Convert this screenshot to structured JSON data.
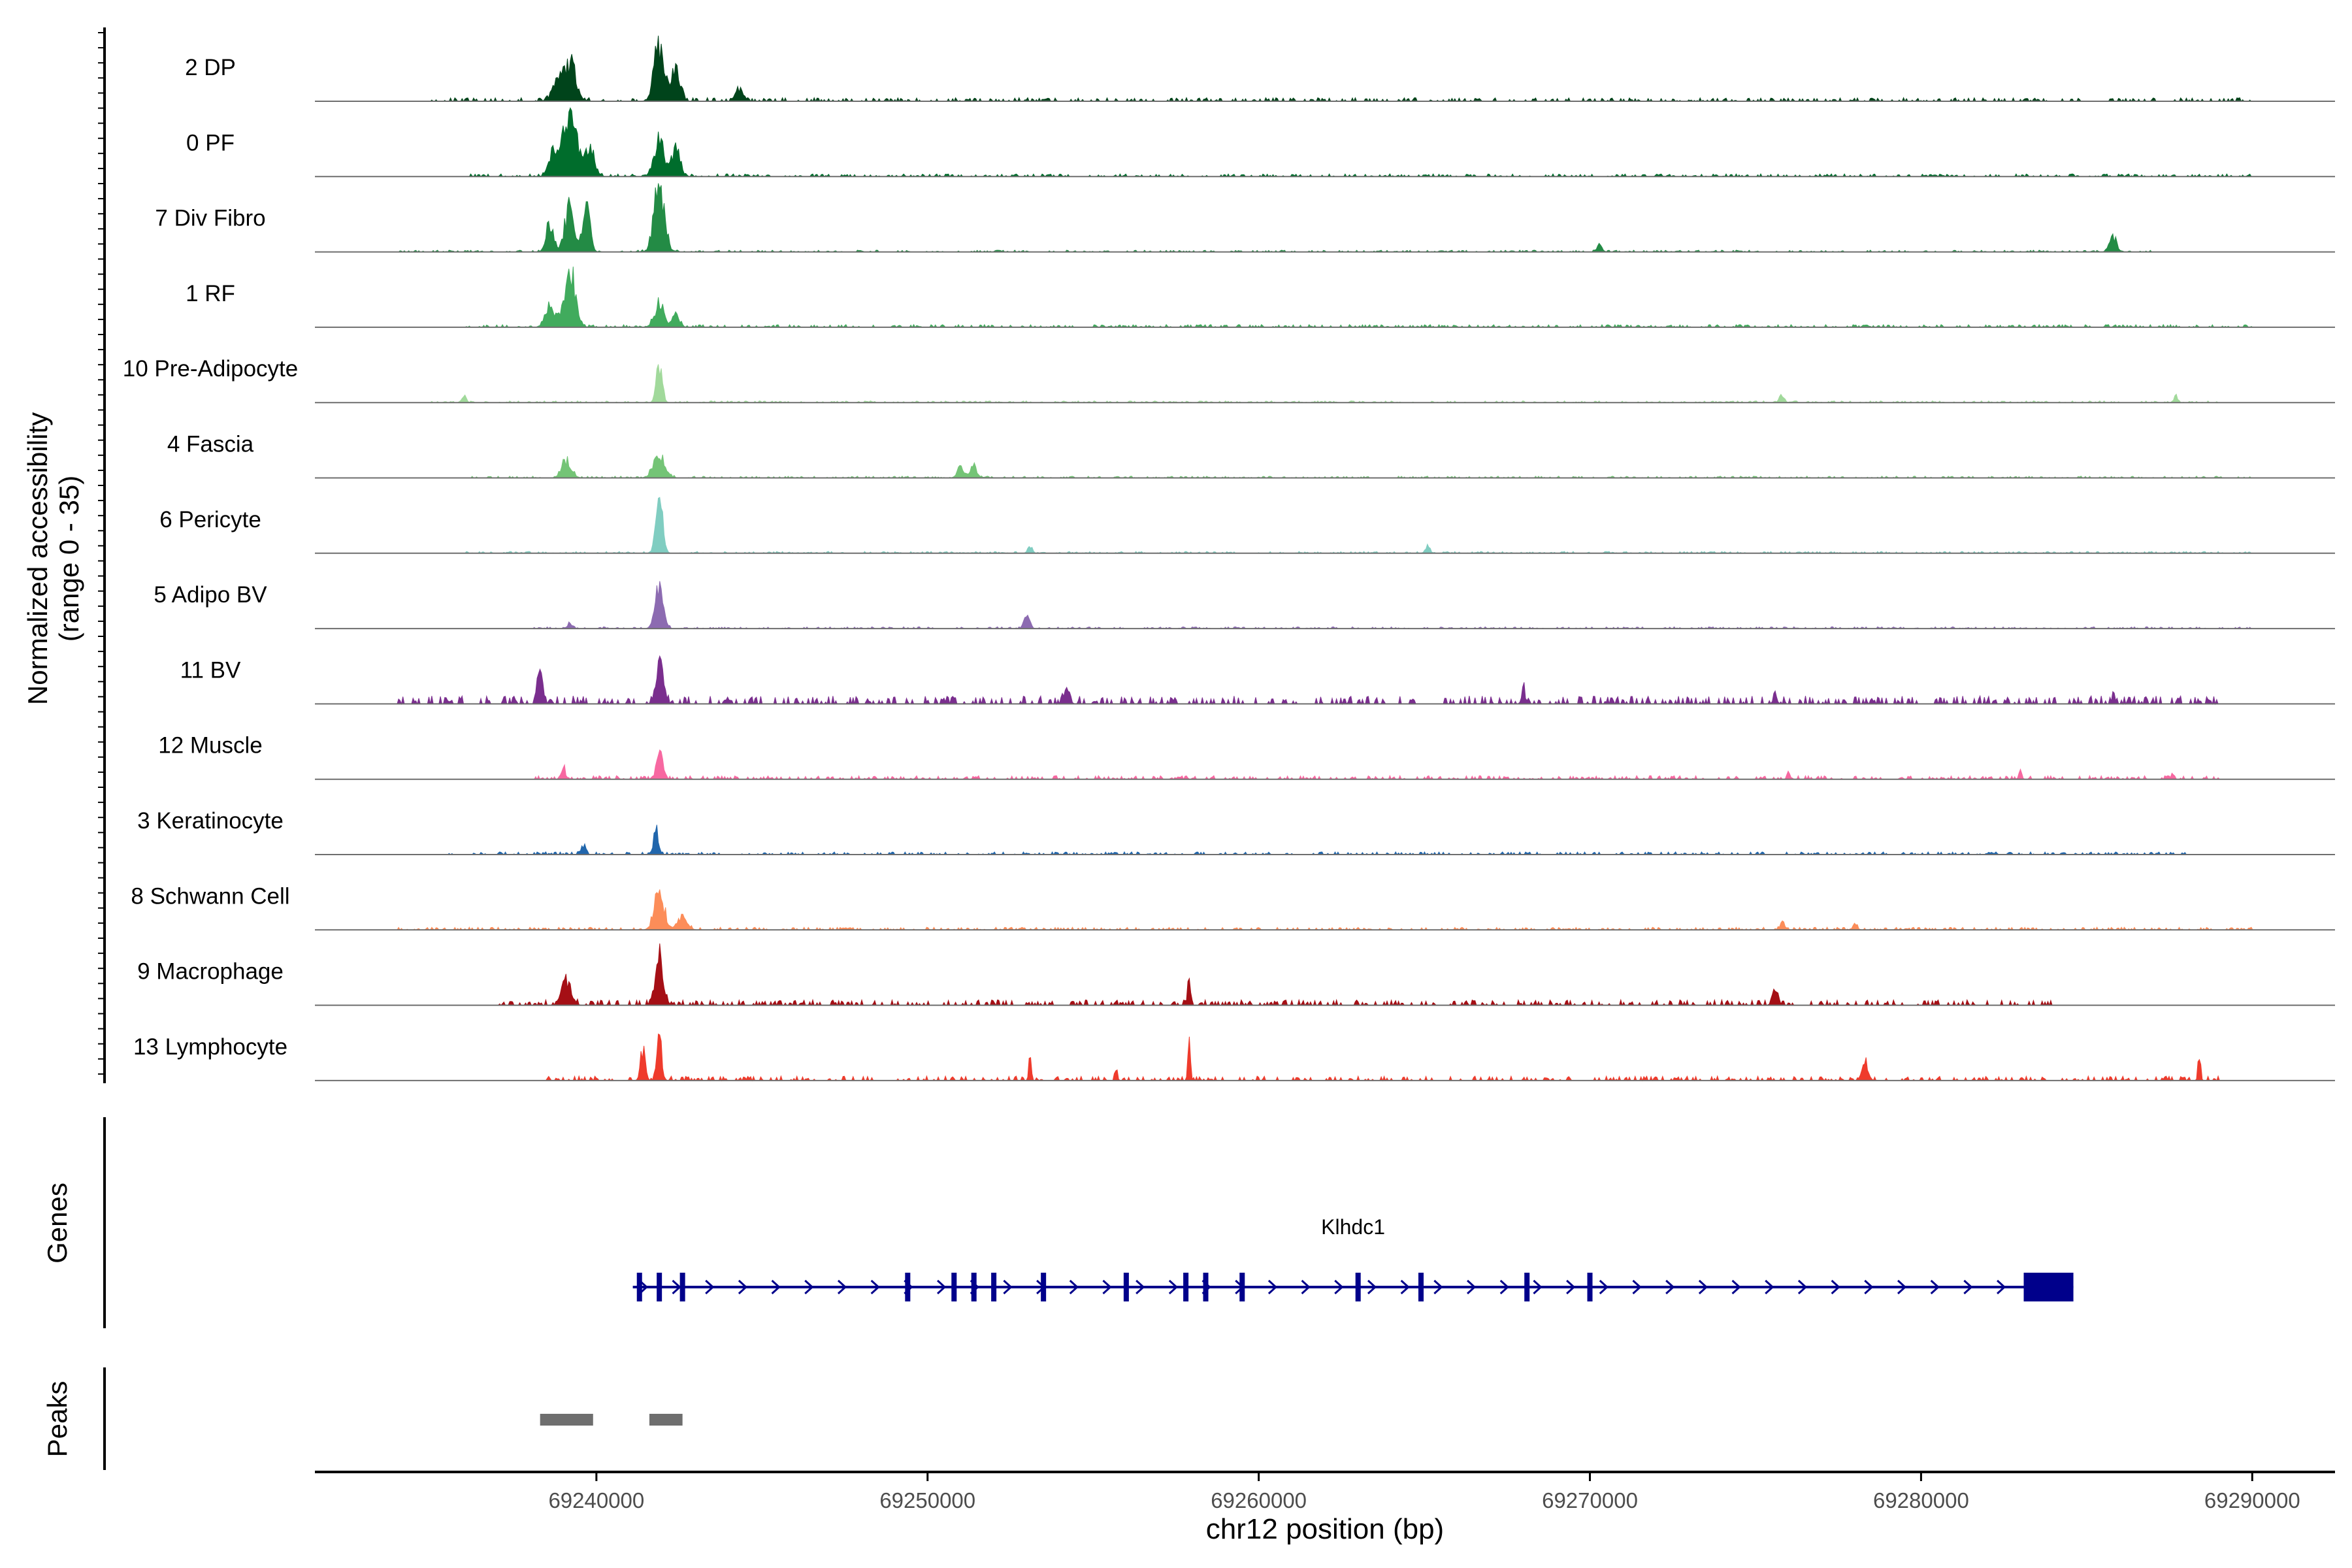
{
  "chart_data": {
    "type": "area",
    "title": "",
    "ylabel_line1": "Normalized accessibility",
    "ylabel_line2": "(range 0 - 35)",
    "y_range": [
      0,
      35
    ],
    "xlabel": "chr12 position (bp)",
    "xlim": [
      69231500,
      69292500
    ],
    "x_ticks": [
      69240000,
      69250000,
      69260000,
      69270000,
      69280000,
      69290000
    ],
    "x_tick_labels": [
      "69240000",
      "69250000",
      "69260000",
      "69270000",
      "69280000",
      "69290000"
    ],
    "tracks": [
      {
        "name": "2 DP",
        "color": "#00441b",
        "peaks": [
          [
            69239200,
            0.55,
            250
          ],
          [
            69238800,
            0.3,
            200
          ],
          [
            69241900,
            0.8,
            220
          ],
          [
            69242400,
            0.45,
            180
          ],
          [
            69244300,
            0.2,
            150
          ]
        ],
        "bg": 0.04,
        "span": [
          69235000,
          69290000
        ]
      },
      {
        "name": "0 PF",
        "color": "#006d2c",
        "peaks": [
          [
            69239200,
            0.95,
            280
          ],
          [
            69238700,
            0.35,
            200
          ],
          [
            69239800,
            0.4,
            200
          ],
          [
            69241900,
            0.5,
            220
          ],
          [
            69242400,
            0.4,
            180
          ]
        ],
        "bg": 0.03,
        "span": [
          69236000,
          69290000
        ]
      },
      {
        "name": "7 Div Fibro",
        "color": "#238b45",
        "peaks": [
          [
            69238600,
            0.45,
            150
          ],
          [
            69239200,
            0.7,
            200
          ],
          [
            69239700,
            0.65,
            150
          ],
          [
            69241900,
            0.95,
            220
          ],
          [
            69285800,
            0.2,
            150
          ],
          [
            69270300,
            0.12,
            100
          ]
        ],
        "bg": 0.02,
        "span": [
          69234000,
          69287000
        ]
      },
      {
        "name": "1 RF",
        "color": "#41ab5d",
        "peaks": [
          [
            69239200,
            0.85,
            230
          ],
          [
            69238600,
            0.3,
            200
          ],
          [
            69241900,
            0.35,
            200
          ],
          [
            69242400,
            0.2,
            150
          ]
        ],
        "bg": 0.03,
        "span": [
          69236000,
          69290000
        ]
      },
      {
        "name": "10 Pre-Adipocyte",
        "color": "#a1d99b",
        "peaks": [
          [
            69241900,
            0.55,
            120
          ],
          [
            69236000,
            0.1,
            80
          ],
          [
            69275800,
            0.12,
            100
          ],
          [
            69287700,
            0.1,
            80
          ]
        ],
        "bg": 0.02,
        "span": [
          69235000,
          69289000
        ]
      },
      {
        "name": "4 Fascia",
        "color": "#74c476",
        "peaks": [
          [
            69239100,
            0.25,
            200
          ],
          [
            69241900,
            0.3,
            250
          ],
          [
            69251000,
            0.15,
            150
          ],
          [
            69251400,
            0.2,
            120
          ]
        ],
        "bg": 0.02,
        "span": [
          69236000,
          69290000
        ]
      },
      {
        "name": "6 Pericyte",
        "color": "#80cdc1",
        "peaks": [
          [
            69241900,
            0.75,
            150
          ],
          [
            69265100,
            0.12,
            100
          ],
          [
            69253100,
            0.08,
            100
          ]
        ],
        "bg": 0.02,
        "span": [
          69236000,
          69290000
        ]
      },
      {
        "name": "5 Adipo BV",
        "color": "#8c6bb1",
        "peaks": [
          [
            69241900,
            0.6,
            170
          ],
          [
            69253000,
            0.18,
            120
          ],
          [
            69239200,
            0.08,
            100
          ]
        ],
        "bg": 0.02,
        "span": [
          69238000,
          69290000
        ]
      },
      {
        "name": "11 BV",
        "color": "#7a2e8e",
        "peaks": [
          [
            69241900,
            0.7,
            150
          ],
          [
            69238300,
            0.5,
            100
          ],
          [
            69268000,
            0.2,
            80
          ],
          [
            69254200,
            0.15,
            120
          ],
          [
            69275600,
            0.12,
            80
          ],
          [
            69285800,
            0.1,
            80
          ]
        ],
        "bg": 0.09,
        "span": [
          69234000,
          69289000
        ]
      },
      {
        "name": "12 Muscle",
        "color": "#f768a1",
        "peaks": [
          [
            69241900,
            0.45,
            120
          ],
          [
            69239000,
            0.15,
            100
          ],
          [
            69283000,
            0.12,
            60
          ],
          [
            69276000,
            0.1,
            60
          ],
          [
            69287600,
            0.1,
            60
          ]
        ],
        "bg": 0.04,
        "span": [
          69238000,
          69289000
        ]
      },
      {
        "name": "3 Keratinocyte",
        "color": "#2166ac",
        "peaks": [
          [
            69241800,
            0.35,
            100
          ],
          [
            69239600,
            0.12,
            100
          ]
        ],
        "bg": 0.03,
        "span": [
          69235500,
          69288000
        ]
      },
      {
        "name": "8 Schwann Cell",
        "color": "#fc8d59",
        "peaks": [
          [
            69241900,
            0.6,
            200
          ],
          [
            69242600,
            0.2,
            200
          ],
          [
            69275800,
            0.1,
            100
          ],
          [
            69278000,
            0.08,
            100
          ]
        ],
        "bg": 0.03,
        "span": [
          69234000,
          69290000
        ]
      },
      {
        "name": "9 Macrophage",
        "color": "#a50f15",
        "peaks": [
          [
            69241900,
            0.65,
            170
          ],
          [
            69239100,
            0.35,
            200
          ],
          [
            69257900,
            0.4,
            60
          ],
          [
            69275600,
            0.2,
            120
          ]
        ],
        "bg": 0.06,
        "span": [
          69237000,
          69284000
        ]
      },
      {
        "name": "13 Lymphocyte",
        "color": "#ef3b2c",
        "peaks": [
          [
            69241900,
            0.65,
            100
          ],
          [
            69241400,
            0.45,
            100
          ],
          [
            69257900,
            0.65,
            50
          ],
          [
            69253100,
            0.4,
            50
          ],
          [
            69288400,
            0.4,
            50
          ],
          [
            69278300,
            0.3,
            120
          ],
          [
            69255700,
            0.15,
            50
          ]
        ],
        "bg": 0.05,
        "span": [
          69238500,
          69289000
        ]
      }
    ],
    "gene_panel_label": "Genes",
    "gene": {
      "name": "Klhdc1",
      "start": 69241100,
      "end": 69284600,
      "strand": "+",
      "exons": [
        69241300,
        69241900,
        69242600,
        69249400,
        69250800,
        69251400,
        69252000,
        69253500,
        69256000,
        69257800,
        69258400,
        69259500,
        69263000,
        69264900,
        69268100,
        69270000
      ],
      "utr_box": [
        69283100,
        69284600
      ]
    },
    "peaks_panel_label": "Peaks",
    "peak_regions": [
      [
        69238300,
        69239900
      ],
      [
        69241600,
        69242600
      ]
    ]
  }
}
